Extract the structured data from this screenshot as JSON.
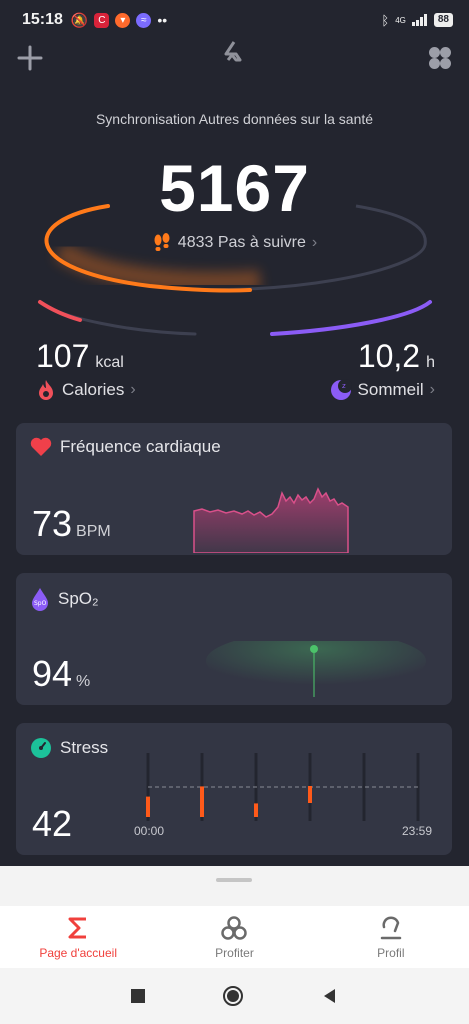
{
  "status": {
    "time": "15:18",
    "network": "4G",
    "battery": "88"
  },
  "sync_text": "Synchronisation Autres données sur la santé",
  "steps": {
    "value": "5167",
    "target_text": "4833 Pas à suivre"
  },
  "calories": {
    "value": "107",
    "unit": "kcal",
    "label": "Calories"
  },
  "sleep": {
    "value": "10,2",
    "unit": "h",
    "label": "Sommeil"
  },
  "heart": {
    "title": "Fréquence cardiaque",
    "value": "73",
    "unit": "BPM"
  },
  "spo2": {
    "title": "SpO₂",
    "value": "94",
    "unit": "%"
  },
  "stress": {
    "title": "Stress",
    "value": "42",
    "start_label": "00:00",
    "end_label": "23:59",
    "bar_levels": [
      0.3,
      0.45,
      0.2,
      0.25
    ]
  },
  "nav": {
    "home": "Page d'accueil",
    "enjoy": "Profiter",
    "profile": "Profil"
  },
  "colors": {
    "accent_red": "#f0403c",
    "steps_orange": "#ff7a1a",
    "sleep_purple": "#8b5cf6",
    "heart_pink": "#c2407a",
    "spo2_green": "#4cc26a",
    "stress_teal": "#1cc29a",
    "stress_bar": "#ff5a1a"
  }
}
